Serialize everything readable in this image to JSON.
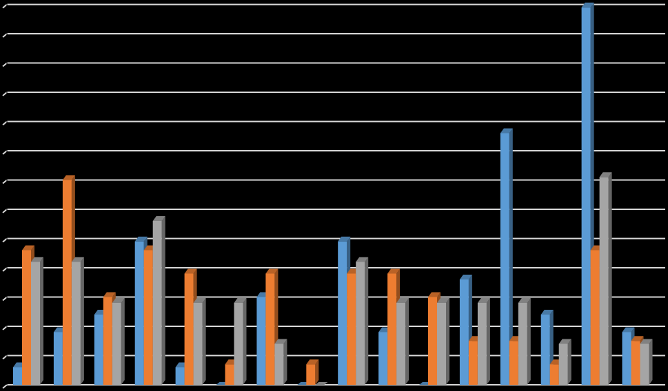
{
  "chart_data": {
    "type": "bar",
    "style": "3d-clustered-column",
    "background": "#000000",
    "grid": true,
    "gridline_color": "#d9d9d9",
    "tick_labels_visible": false,
    "legend": "none",
    "ylim": [
      0,
      13
    ],
    "grid_step": 1,
    "categories": [
      "",
      "",
      "",
      "",
      "",
      "",
      "",
      "",
      "",
      "",
      "",
      "",
      "",
      "",
      "",
      ""
    ],
    "series": [
      {
        "color": "#5b9bd5",
        "values": [
          0.6,
          1.8,
          2.4,
          4.9,
          0.6,
          0.0,
          3.0,
          0.0,
          4.9,
          1.8,
          0.0,
          3.6,
          8.6,
          2.4,
          12.9,
          1.8
        ]
      },
      {
        "color": "#ed7d31",
        "values": [
          4.6,
          7.0,
          3.0,
          4.6,
          3.8,
          0.7,
          3.8,
          0.7,
          3.8,
          3.8,
          3.0,
          1.5,
          1.5,
          0.7,
          4.6,
          1.5
        ]
      },
      {
        "color": "#a5a5a5",
        "values": [
          4.2,
          4.2,
          2.8,
          5.6,
          2.8,
          2.8,
          1.4,
          0.0,
          4.2,
          2.8,
          2.8,
          2.8,
          2.8,
          1.4,
          7.1,
          1.4
        ]
      }
    ]
  }
}
